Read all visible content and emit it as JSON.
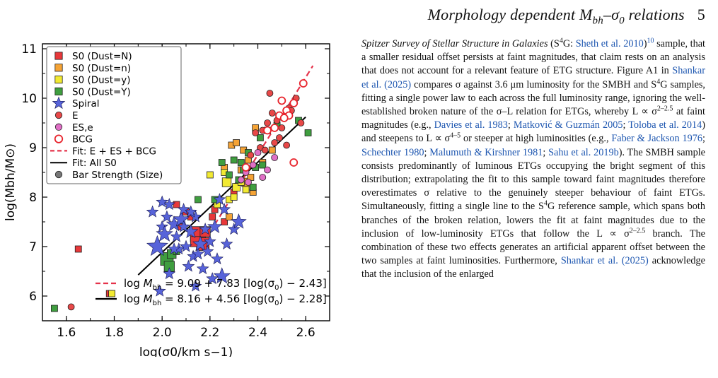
{
  "header": {
    "running_title": "Morphology dependent M",
    "running_title_sub": "bh",
    "running_title_rest": "–σ",
    "running_title_sub2": "0",
    "running_title_end": " relations",
    "page_number": "5"
  },
  "chart_data": {
    "type": "scatter",
    "xlabel": "log(σ0/km s−1)",
    "ylabel": "log(Mbh/M⊙)",
    "xlim": [
      1.5,
      2.7
    ],
    "ylim": [
      5.5,
      11.1
    ],
    "xticks": [
      "1.6",
      "1.8",
      "2.0",
      "2.2",
      "2.4",
      "2.6"
    ],
    "yticks": [
      "6",
      "7",
      "8",
      "9",
      "10",
      "11"
    ],
    "legend": {
      "placement": "top-left",
      "entries": [
        "S0 (Dust=N)",
        "S0 (Dust=n)",
        "S0 (Dust=y)",
        "S0 (Dust=Y)",
        "Spiral",
        "E",
        "ES,e",
        "BCG",
        "Fit: E + ES + BCG",
        "Fit: All S0",
        "Bar Strength (Size)"
      ]
    },
    "colors": {
      "s0_N": "#e8383a",
      "s0_n": "#f5a335",
      "s0_y": "#f2ea32",
      "s0_Y": "#3f9e3f",
      "spiral": "#5763d9",
      "E": "#e84848",
      "ESe": "#e06fc6",
      "BCG": "#e8232b",
      "fit_E": "#e5334b",
      "fit_S0": "#000000"
    },
    "fits": [
      {
        "name": "Fit: E + ES + BCG",
        "equation": "log M_bh = 9.09 + 7.83 [log(σ0) − 2.43]",
        "intercept": 9.09,
        "slope": 7.83,
        "pivot": 2.43,
        "x_range": [
          2.22,
          2.63
        ]
      },
      {
        "name": "Fit: All S0",
        "equation": "log M_bh = 8.16 + 4.56 [log(σ0) − 2.28]",
        "intercept": 8.16,
        "slope": 4.56,
        "pivot": 2.28,
        "x_range": [
          1.9,
          2.6
        ]
      }
    ],
    "fit_labels": [
      {
        "pre": "log ",
        "m": "M",
        "sub": "bh",
        "post": " = 9.09 + 7.83 [log(σ",
        "sub2": "0",
        "end": ") − 2.43]"
      },
      {
        "pre": "log ",
        "m": "M",
        "sub": "bh",
        "post": " = 8.16 + 4.56 [log(σ",
        "sub2": "0",
        "end": ") − 2.28]"
      }
    ],
    "series": [
      {
        "name": "S0 (Dust=N)",
        "marker": "square",
        "color": "#e8383a",
        "points": [
          [
            1.65,
            6.95
          ],
          [
            1.78,
            6.05
          ],
          [
            2.06,
            7.85
          ],
          [
            2.1,
            7.7
          ],
          [
            2.15,
            7.25
          ],
          [
            2.17,
            7.05
          ],
          [
            2.18,
            7.3
          ],
          [
            2.14,
            7.1
          ],
          [
            2.22,
            7.75
          ],
          [
            2.26,
            7.5
          ],
          [
            2.3,
            8.1
          ],
          [
            2.21,
            7.6
          ],
          [
            2.08,
            7.4
          ],
          [
            2.12,
            7.6
          ]
        ],
        "sizes": [
          1,
          1,
          1,
          1,
          2.4,
          2,
          1.6,
          1.6,
          1,
          1,
          1,
          1,
          1,
          1
        ]
      },
      {
        "name": "S0 (Dust=n)",
        "marker": "square",
        "color": "#f5a335",
        "points": [
          [
            2.28,
            7.6
          ],
          [
            2.33,
            8.55
          ],
          [
            2.35,
            8.3
          ],
          [
            2.38,
            8.1
          ],
          [
            2.29,
            9.05
          ],
          [
            2.36,
            8.75
          ],
          [
            2.26,
            8.6
          ],
          [
            2.42,
            8.7
          ],
          [
            2.39,
            9.4
          ],
          [
            2.31,
            9.1
          ],
          [
            2.46,
            8.95
          ],
          [
            2.34,
            8.95
          ],
          [
            2.37,
            8.4
          ]
        ],
        "sizes": [
          1,
          1,
          1.3,
          1,
          1,
          1,
          1,
          1,
          1,
          1,
          1,
          1,
          1
        ]
      },
      {
        "name": "S0 (Dust=y)",
        "marker": "square",
        "color": "#f2ea32",
        "points": [
          [
            2.23,
            7.85
          ],
          [
            2.27,
            8.3
          ],
          [
            2.31,
            8.2
          ],
          [
            2.33,
            8.3
          ],
          [
            2.28,
            7.95
          ],
          [
            2.35,
            8.15
          ],
          [
            2.3,
            8.0
          ],
          [
            1.79,
            6.05
          ],
          [
            2.2,
            8.45
          ],
          [
            2.26,
            8.5
          ]
        ],
        "sizes": [
          1,
          1.4,
          1.2,
          1,
          1,
          1,
          1,
          1,
          1,
          1
        ]
      },
      {
        "name": "S0 (Dust=Y)",
        "marker": "square",
        "color": "#3f9e3f",
        "points": [
          [
            1.55,
            5.75
          ],
          [
            2.02,
            6.75
          ],
          [
            2.03,
            6.6
          ],
          [
            2.04,
            6.85
          ],
          [
            2.15,
            7.95
          ],
          [
            2.28,
            8.45
          ],
          [
            2.32,
            8.35
          ],
          [
            2.34,
            8.55
          ],
          [
            2.38,
            8.2
          ],
          [
            2.36,
            8.9
          ],
          [
            2.41,
            9.2
          ],
          [
            2.44,
            9.35
          ],
          [
            2.48,
            9.45
          ],
          [
            2.57,
            9.55
          ],
          [
            2.61,
            9.3
          ],
          [
            2.3,
            8.75
          ],
          [
            2.33,
            8.7
          ],
          [
            2.22,
            7.95
          ],
          [
            2.25,
            8.7
          ],
          [
            2.06,
            6.9
          ],
          [
            2.39,
            8.6
          ],
          [
            2.42,
            8.65
          ]
        ],
        "sizes": [
          1,
          2,
          1.6,
          1.4,
          1,
          1,
          1,
          1,
          1,
          1,
          1,
          1,
          1,
          1,
          1,
          1,
          1,
          1,
          1,
          1,
          1,
          1
        ]
      },
      {
        "name": "Spiral",
        "marker": "star",
        "color": "#5763d9",
        "points": [
          [
            1.96,
            7.7
          ],
          [
            1.98,
            7.0
          ],
          [
            1.99,
            6.1
          ],
          [
            2.0,
            7.4
          ],
          [
            2.01,
            7.25
          ],
          [
            2.02,
            7.6
          ],
          [
            2.03,
            7.85
          ],
          [
            2.05,
            7.45
          ],
          [
            2.06,
            7.2
          ],
          [
            2.07,
            6.95
          ],
          [
            2.08,
            7.55
          ],
          [
            2.09,
            7.75
          ],
          [
            2.1,
            7.0
          ],
          [
            2.11,
            6.6
          ],
          [
            2.12,
            7.3
          ],
          [
            2.13,
            6.8
          ],
          [
            2.14,
            7.6
          ],
          [
            2.15,
            6.85
          ],
          [
            2.16,
            7.05
          ],
          [
            2.17,
            6.55
          ],
          [
            2.18,
            7.35
          ],
          [
            2.19,
            6.9
          ],
          [
            2.2,
            7.1
          ],
          [
            2.21,
            6.35
          ],
          [
            2.22,
            7.4
          ],
          [
            2.23,
            6.75
          ],
          [
            2.24,
            7.95
          ],
          [
            2.25,
            6.4
          ],
          [
            2.27,
            7.05
          ],
          [
            2.3,
            7.35
          ],
          [
            2.32,
            7.5
          ],
          [
            2.14,
            6.2
          ],
          [
            2.05,
            6.95
          ],
          [
            2.0,
            7.9
          ],
          [
            2.09,
            7.4
          ],
          [
            2.03,
            6.45
          ],
          [
            2.26,
            7.75
          ],
          [
            2.12,
            7.7
          ]
        ],
        "sizes": [
          1,
          1.8,
          1,
          1,
          1.4,
          1,
          1,
          1.3,
          1,
          1,
          1.4,
          1,
          1,
          1,
          1.2,
          1,
          1,
          1,
          1.3,
          1,
          1,
          1,
          1,
          1,
          1.2,
          1,
          1,
          1.4,
          1,
          1,
          1.3,
          1,
          1,
          1,
          1,
          1,
          1,
          1
        ]
      },
      {
        "name": "E",
        "marker": "circle",
        "color": "#e84848",
        "points": [
          [
            1.62,
            5.78
          ],
          [
            2.37,
            8.85
          ],
          [
            2.41,
            9.0
          ],
          [
            2.44,
            9.5
          ],
          [
            2.46,
            9.7
          ],
          [
            2.48,
            9.55
          ],
          [
            2.5,
            9.4
          ],
          [
            2.53,
            9.8
          ],
          [
            2.55,
            9.9
          ],
          [
            2.52,
            9.05
          ],
          [
            2.49,
            9.2
          ],
          [
            2.45,
            10.1
          ],
          [
            2.43,
            8.95
          ],
          [
            2.51,
            9.6
          ],
          [
            2.47,
            9.1
          ],
          [
            2.56,
            10.0
          ],
          [
            2.39,
            9.3
          ],
          [
            2.54,
            9.75
          ],
          [
            2.42,
            9.35
          ],
          [
            2.58,
            9.5
          ]
        ],
        "sizes": [
          1,
          1,
          1,
          1,
          1,
          1,
          1,
          1,
          1,
          1,
          1,
          1,
          1,
          1,
          1,
          1,
          1,
          1,
          1,
          1
        ]
      },
      {
        "name": "ES,e",
        "marker": "circle",
        "color": "#e06fc6",
        "points": [
          [
            2.33,
            8.35
          ],
          [
            2.36,
            8.3
          ],
          [
            2.4,
            8.9
          ],
          [
            2.44,
            8.55
          ],
          [
            2.47,
            8.8
          ],
          [
            2.38,
            8.65
          ],
          [
            2.42,
            8.4
          ],
          [
            2.35,
            8.5
          ]
        ],
        "sizes": [
          1,
          1,
          1,
          1,
          1,
          1,
          1,
          1
        ]
      },
      {
        "name": "BCG",
        "marker": "open-circle",
        "color": "#e8232b",
        "points": [
          [
            2.35,
            8.6
          ],
          [
            2.44,
            9.35
          ],
          [
            2.47,
            9.4
          ],
          [
            2.49,
            9.65
          ],
          [
            2.52,
            9.75
          ],
          [
            2.53,
            9.65
          ],
          [
            2.55,
            9.9
          ],
          [
            2.59,
            10.3
          ],
          [
            2.5,
            9.95
          ],
          [
            2.55,
            8.7
          ],
          [
            2.51,
            9.6
          ]
        ],
        "sizes": [
          1,
          1,
          1,
          1,
          1,
          1,
          1,
          1,
          1,
          1,
          1
        ]
      }
    ]
  },
  "text": {
    "survey_name": "Spitzer Survey of Stellar Structure in Galaxies",
    "survey_abbr_pre": " (S",
    "survey_abbr_sup": "4",
    "survey_abbr_post": "G: ",
    "cite_sheth": "Sheth et al. 2010",
    "cite_sheth_end": ")",
    "footnote_mark": "10",
    "t1": " sample, that a smaller residual offset persists at faint magnitudes, that claim rests on an analysis that does not account for a relevant feature of ETG structure. Figure A1 in ",
    "cite_shankar1": "Shankar et al. (2025)",
    "t2": " compares σ against 3.6 μm luminosity for the SMBH and S",
    "t2_sup": "4",
    "t3": "G samples, fitting a single power law to each across the full luminosity range, ignoring the well-established broken nature of the σ–L relation for ETGs, whereby L ∝ σ",
    "t3_sup": "2–2.5",
    "t4": " at faint magnitudes (e.g., ",
    "cite_davies": "Davies et al. 1983",
    "sep1": "; ",
    "cite_matkovic": "Matković & Guzmán 2005",
    "sep2": "; ",
    "cite_toloba": "Toloba et al. 2014",
    "t5": ") and steepens to L ∝ σ",
    "t5_sup": "4–5",
    "t6": " or steeper at high luminosities (e.g., ",
    "cite_faber": "Faber & Jackson 1976",
    "sep3": "; ",
    "cite_schechter": "Schechter 1980",
    "sep4": "; ",
    "cite_malumuth": "Malumuth & Kirshner 1981",
    "sep5": "; ",
    "cite_sahu": "Sahu et al. 2019b",
    "t7": "). The SMBH sample consists predominantly of luminous ETGs occupying the bright segment of this distribution; extrapolating the fit to this sample toward faint magnitudes therefore overestimates σ relative to the genuinely steeper behaviour of faint ETGs. Simultaneously, fitting a single line to the S",
    "t7_sup": "4",
    "t8": "G reference sample, which spans both branches of the broken relation, lowers the fit at faint magnitudes due to the inclusion of low-luminosity ETGs that follow the L ∝ σ",
    "t8_sup": "2–2.5",
    "t9": " branch. The combination of these two effects generates an artificial apparent offset between the two samples at faint luminosities. Furthermore, ",
    "cite_shankar2": "Shankar et al. (2025)",
    "t10": " acknowledge that the inclusion of the enlarged"
  }
}
